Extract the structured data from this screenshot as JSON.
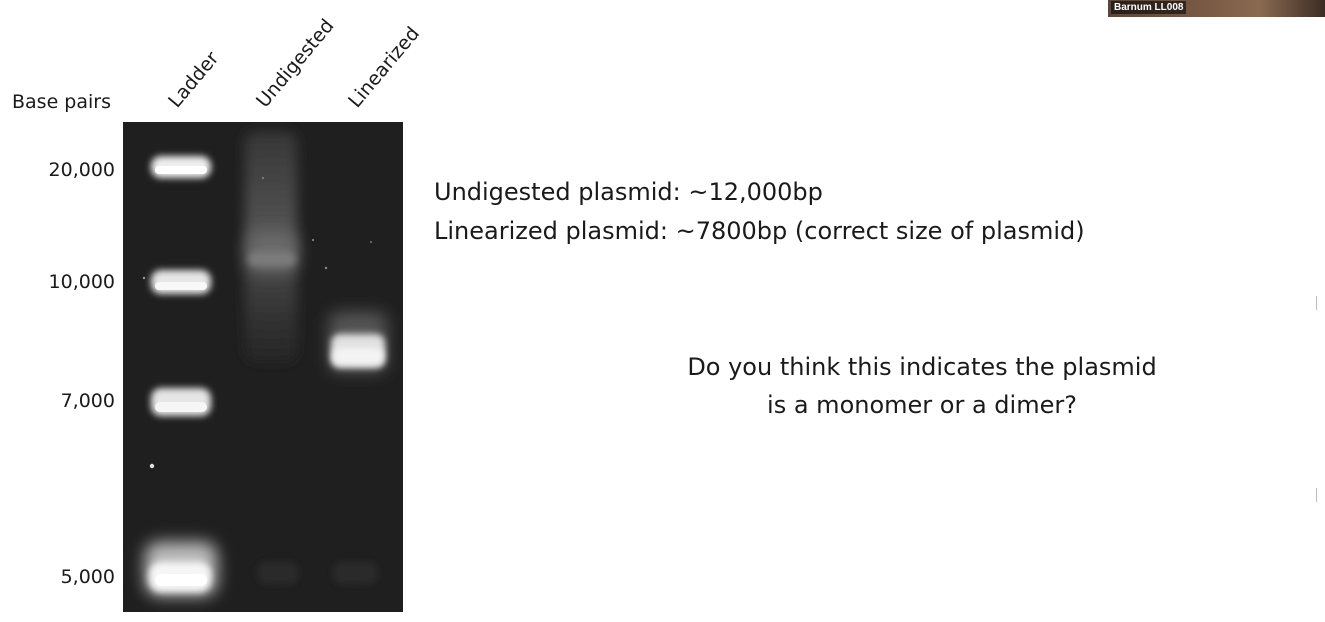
{
  "participant": {
    "name": "Barnum LL008"
  },
  "gel": {
    "axis_title": "Base pairs",
    "lanes": [
      {
        "label": "Ladder"
      },
      {
        "label": "Undigested"
      },
      {
        "label": "Linearized"
      }
    ],
    "ladder_bands": [
      {
        "label": "20,000",
        "bp": 20000
      },
      {
        "label": "10,000",
        "bp": 10000
      },
      {
        "label": "7,000",
        "bp": 7000
      },
      {
        "label": "5,000",
        "bp": 5000
      }
    ],
    "sample_bands": [
      {
        "lane": "Undigested",
        "approx_bp": 12000
      },
      {
        "lane": "Linearized",
        "approx_bp": 7800
      }
    ]
  },
  "notes": {
    "undigested": "Undigested plasmid: ~12,000bp",
    "linearized": "Linearized plasmid: ~7800bp (correct size of plasmid)"
  },
  "question": {
    "line1": "Do you think this indicates the plasmid",
    "line2": "is a monomer or a dimer?"
  },
  "colors": {
    "gel_background": "#1f1f1f",
    "band": "#f2f2f2"
  }
}
